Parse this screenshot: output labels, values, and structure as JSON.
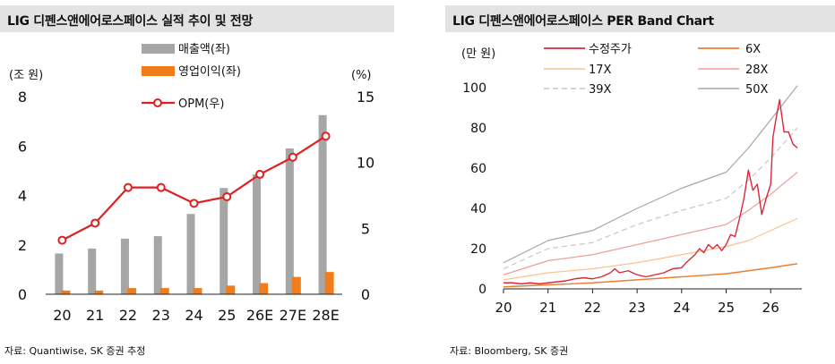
{
  "left": {
    "title": "LIG 디펜스앤에어로스페이스 실적 추이 및 전망",
    "source": "자료: Quantiwise, SK 증권 추정"
  },
  "right": {
    "title": "LIG 디펜스앤에어로스페이스 PER Band Chart",
    "source": "자료: Bloomberg, SK 증권"
  },
  "chart_data": [
    {
      "type": "bar",
      "title": "LIG 디펜스앤에어로스페이스 실적 추이 및 전망",
      "ylabel": "(조 원)",
      "y2label": "(%)",
      "ylim": [
        0,
        8
      ],
      "y2lim": [
        0,
        15
      ],
      "yticks": [
        "0",
        "2",
        "4",
        "6",
        "8"
      ],
      "y2ticks": [
        "0",
        "5",
        "10",
        "15"
      ],
      "categories": [
        "20",
        "21",
        "22",
        "23",
        "24",
        "25",
        "26E",
        "27E",
        "28E"
      ],
      "legend_position": "top-center",
      "series": [
        {
          "name": "매출액(좌)",
          "type": "bar",
          "axis": "left",
          "color": "#a6a6a6",
          "values": [
            1.65,
            1.85,
            2.25,
            2.35,
            3.25,
            4.3,
            4.85,
            5.9,
            7.25
          ]
        },
        {
          "name": "영업이익(좌)",
          "type": "bar",
          "axis": "left",
          "color": "#f07c1c",
          "values": [
            0.15,
            0.15,
            0.25,
            0.25,
            0.25,
            0.35,
            0.45,
            0.7,
            0.9
          ]
        },
        {
          "name": "OPM(우)",
          "type": "line",
          "axis": "right",
          "color": "#e02020",
          "values": [
            4.1,
            5.4,
            8.1,
            8.1,
            6.9,
            7.4,
            9.1,
            10.4,
            12.0
          ]
        }
      ]
    },
    {
      "type": "line",
      "title": "LIG 디펜스앤에어로스페이스 PER Band Chart",
      "ylabel": "(만 원)",
      "ylim": [
        0,
        100
      ],
      "yticks": [
        "0",
        "20",
        "40",
        "60",
        "80",
        "100"
      ],
      "xlim": [
        20,
        26.7
      ],
      "xticks": [
        "20",
        "21",
        "22",
        "23",
        "24",
        "25",
        "26"
      ],
      "legend_position": "top",
      "series": [
        {
          "name": "수정주가",
          "color": "#d9283a",
          "dash": "solid",
          "width": 1.4,
          "x": [
            20.0,
            20.2,
            20.4,
            20.6,
            20.8,
            21.0,
            21.2,
            21.4,
            21.6,
            21.8,
            22.0,
            22.2,
            22.4,
            22.5,
            22.6,
            22.8,
            23.0,
            23.2,
            23.4,
            23.6,
            23.8,
            24.0,
            24.1,
            24.2,
            24.3,
            24.4,
            24.5,
            24.6,
            24.7,
            24.8,
            24.9,
            25.0,
            25.1,
            25.2,
            25.3,
            25.4,
            25.5,
            25.6,
            25.7,
            25.8,
            25.9,
            26.0,
            26.05,
            26.1,
            26.2,
            26.3,
            26.4,
            26.5,
            26.6
          ],
          "y": [
            3,
            3,
            2.5,
            3,
            2.5,
            3,
            3.5,
            4,
            5,
            5.5,
            5,
            6,
            8,
            10,
            8,
            9,
            7,
            6,
            7,
            8,
            10,
            10.5,
            13,
            15,
            17,
            20,
            18,
            22,
            20,
            22,
            19,
            22,
            27,
            26,
            35,
            45,
            59,
            49,
            52,
            37,
            45,
            52,
            75,
            82,
            94,
            78,
            78,
            72,
            70
          ]
        },
        {
          "name": "6X",
          "color": "#ed7d31",
          "dash": "solid",
          "width": 1.4,
          "x": [
            20,
            21,
            22,
            23,
            24,
            25,
            25.5,
            26,
            26.6
          ],
          "y": [
            1,
            2,
            3,
            4.5,
            6,
            7.5,
            9,
            10.5,
            12.5
          ]
        },
        {
          "name": "17X",
          "color": "#f8c38f",
          "dash": "solid",
          "width": 1.2,
          "x": [
            20,
            21,
            22,
            23,
            24,
            25,
            25.5,
            26,
            26.6
          ],
          "y": [
            4.5,
            8,
            10,
            13,
            17,
            21,
            24,
            29,
            35
          ]
        },
        {
          "name": "28X",
          "color": "#ee9d9d",
          "dash": "solid",
          "width": 1.2,
          "x": [
            20,
            21,
            22,
            23,
            24,
            25,
            25.5,
            26,
            26.6
          ],
          "y": [
            7,
            14,
            17,
            22,
            27,
            32,
            39,
            47,
            58
          ]
        },
        {
          "name": "39X",
          "color": "#c6c6c6",
          "dash": "dashed",
          "width": 1.2,
          "x": [
            20,
            21,
            22,
            23,
            24,
            25,
            25.5,
            26,
            26.6
          ],
          "y": [
            10,
            20,
            23,
            32,
            39,
            45,
            54,
            65,
            80
          ]
        },
        {
          "name": "50X",
          "color": "#a6a6a6",
          "dash": "solid",
          "width": 1.2,
          "x": [
            20,
            21,
            22,
            23,
            24,
            25,
            25.5,
            26,
            26.6
          ],
          "y": [
            13,
            24,
            29,
            40,
            50,
            58,
            70,
            84,
            101
          ]
        }
      ]
    }
  ]
}
